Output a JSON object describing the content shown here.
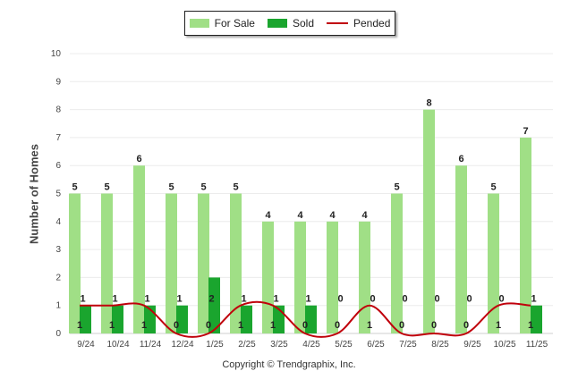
{
  "chart_data": {
    "type": "bar",
    "categories": [
      "9/24",
      "10/24",
      "11/24",
      "12/24",
      "1/25",
      "2/25",
      "3/25",
      "4/25",
      "5/25",
      "6/25",
      "7/25",
      "8/25",
      "9/25",
      "10/25",
      "11/25"
    ],
    "series": [
      {
        "name": "For Sale",
        "type": "bar",
        "color": "#a0df86",
        "values": [
          5,
          5,
          6,
          5,
          5,
          5,
          4,
          4,
          4,
          4,
          5,
          8,
          6,
          5,
          7
        ]
      },
      {
        "name": "Sold",
        "type": "bar",
        "color": "#1aa52e",
        "values": [
          1,
          1,
          1,
          1,
          2,
          1,
          1,
          1,
          0,
          0,
          0,
          0,
          0,
          0,
          1
        ]
      },
      {
        "name": "Pended",
        "type": "line",
        "color": "#c0000b",
        "values": [
          1,
          1,
          1,
          0,
          0,
          1,
          1,
          0,
          0,
          1,
          0,
          0,
          0,
          1,
          1
        ]
      }
    ],
    "ylabel": "Number of Homes",
    "xlabel": "",
    "ylim": [
      0,
      10
    ],
    "yticks": [
      0,
      1,
      2,
      3,
      4,
      5,
      6,
      7,
      8,
      9,
      10
    ],
    "grid": true,
    "legend_position": "top-center"
  },
  "footer": {
    "copyright": "Copyright © Trendgraphix, Inc."
  }
}
